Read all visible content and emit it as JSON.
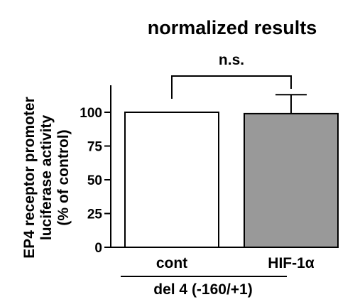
{
  "chart_data": {
    "type": "bar",
    "title": "normalized results",
    "categories": [
      "cont",
      "HIF-1α"
    ],
    "values": [
      100,
      99
    ],
    "error_upper": [
      0,
      14
    ],
    "bar_colors": [
      "#ffffff",
      "#999999"
    ],
    "ylabel_lines": [
      "EP4 receptor promoter",
      "luciferase activity",
      "(% of control)"
    ],
    "yticks": [
      0,
      25,
      50,
      75,
      100
    ],
    "ytick_labels": [
      "0",
      "25",
      "50",
      "75",
      "100"
    ],
    "ylim": [
      0,
      120
    ],
    "group_label": "del 4 (-160/+1)",
    "significance": "n.s.",
    "grid": false,
    "legend": "none"
  }
}
